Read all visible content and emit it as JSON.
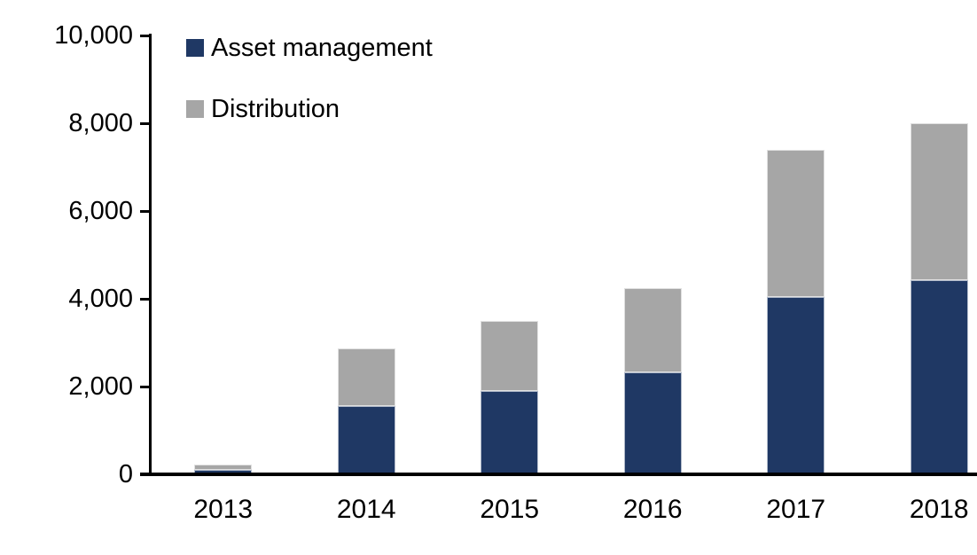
{
  "chart_data": {
    "type": "bar",
    "stacked": true,
    "title": "",
    "xlabel": "",
    "ylabel": "",
    "categories": [
      "2013",
      "2014",
      "2015",
      "2016",
      "2017",
      "2018"
    ],
    "series": [
      {
        "name": "Asset management",
        "color": "#1F3864",
        "values": [
          100,
          1550,
          1900,
          2320,
          4050,
          4420
        ]
      },
      {
        "name": "Distribution",
        "color": "#A6A6A6",
        "values": [
          120,
          1320,
          1600,
          1930,
          3350,
          3580
        ]
      }
    ],
    "totals": [
      220,
      2870,
      3500,
      4250,
      7400,
      8000
    ],
    "ylim": [
      0,
      10000
    ],
    "yticks": [
      0,
      2000,
      4000,
      6000,
      8000,
      10000
    ],
    "ytick_labels": [
      "0",
      "2,000",
      "4,000",
      "6,000",
      "8,000",
      "10,000"
    ],
    "grid": false,
    "legend_position": "top-left-inside",
    "axis_color": "#000000",
    "background_color": "#FFFFFF"
  }
}
